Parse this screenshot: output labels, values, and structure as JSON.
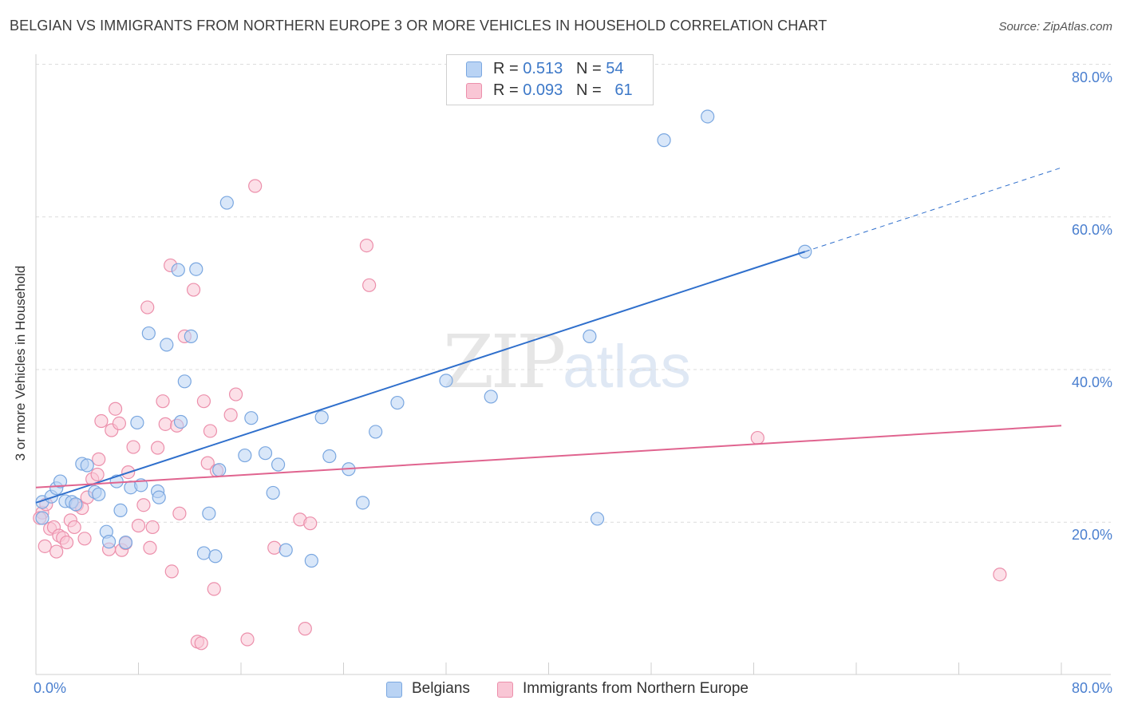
{
  "title": "BELGIAN VS IMMIGRANTS FROM NORTHERN EUROPE 3 OR MORE VEHICLES IN HOUSEHOLD CORRELATION CHART",
  "source": "Source: ZipAtlas.com",
  "watermark": {
    "zip": "ZIP",
    "atlas": "atlas"
  },
  "legend": {
    "rows": [
      {
        "r_label": "R =",
        "r_value": "0.513",
        "n_label": "N =",
        "n_value": "54",
        "color": "#a9c8f2"
      },
      {
        "r_label": "R =",
        "r_value": "0.093",
        "n_label": "N =",
        "n_value": "61",
        "color": "#f6b8cb"
      }
    ]
  },
  "bottom_legend": [
    {
      "label": "Belgians",
      "color": "#a9c8f2"
    },
    {
      "label": "Immigrants from Northern Europe",
      "color": "#f6b8cb"
    }
  ],
  "colors": {
    "blue_fill": "#b9d3f4",
    "blue_stroke": "#7aa7e0",
    "blue_line": "#2f6fcc",
    "pink_fill": "#f9c6d5",
    "pink_stroke": "#ec8fab",
    "pink_line": "#e0648f",
    "grid": "#dcdcdc",
    "tick_label": "#4a7fcf"
  },
  "chart_data": {
    "type": "scatter",
    "title": "BELGIAN VS IMMIGRANTS FROM NORTHERN EUROPE 3 OR MORE VEHICLES IN HOUSEHOLD CORRELATION CHART",
    "xlabel": "",
    "ylabel": "3 or more Vehicles in Household",
    "xlim": [
      0,
      80
    ],
    "ylim": [
      0,
      80
    ],
    "x_tick_labels": [
      "0.0%",
      "80.0%"
    ],
    "y_tick_labels": [
      "80.0%",
      "60.0%",
      "40.0%",
      "20.0%"
    ],
    "y_ticks": [
      80,
      60,
      40,
      20
    ],
    "grid": true,
    "legend_position": "top-center",
    "series": [
      {
        "name": "Belgians",
        "R": 0.513,
        "N": 54,
        "trend": {
          "x0": 0,
          "y0": 22.5,
          "x1": 60,
          "y1": 55.4,
          "dashed_to_x": 80,
          "dashed_to_y": 66.4
        },
        "points": [
          [
            0.5,
            20.5
          ],
          [
            0.5,
            22.6
          ],
          [
            1.2,
            23.3
          ],
          [
            1.6,
            24.4
          ],
          [
            1.9,
            25.3
          ],
          [
            2.3,
            22.7
          ],
          [
            2.8,
            22.6
          ],
          [
            3.1,
            22.3
          ],
          [
            3.6,
            27.6
          ],
          [
            4.0,
            27.4
          ],
          [
            4.6,
            23.9
          ],
          [
            4.9,
            23.6
          ],
          [
            5.5,
            18.7
          ],
          [
            5.7,
            17.4
          ],
          [
            6.3,
            25.3
          ],
          [
            6.6,
            21.5
          ],
          [
            7.0,
            17.3
          ],
          [
            7.4,
            24.5
          ],
          [
            7.9,
            33.0
          ],
          [
            8.2,
            24.8
          ],
          [
            8.8,
            44.7
          ],
          [
            9.5,
            24.0
          ],
          [
            9.6,
            23.2
          ],
          [
            10.2,
            43.2
          ],
          [
            11.1,
            53.0
          ],
          [
            11.3,
            33.1
          ],
          [
            11.6,
            38.4
          ],
          [
            12.1,
            44.3
          ],
          [
            12.5,
            53.1
          ],
          [
            13.1,
            15.9
          ],
          [
            13.5,
            21.1
          ],
          [
            14.0,
            15.5
          ],
          [
            14.3,
            26.8
          ],
          [
            14.9,
            61.8
          ],
          [
            16.3,
            28.7
          ],
          [
            16.8,
            33.6
          ],
          [
            17.9,
            29.0
          ],
          [
            18.5,
            23.8
          ],
          [
            18.9,
            27.5
          ],
          [
            19.5,
            16.3
          ],
          [
            21.5,
            14.9
          ],
          [
            22.3,
            33.7
          ],
          [
            22.9,
            28.6
          ],
          [
            24.4,
            26.9
          ],
          [
            25.5,
            22.5
          ],
          [
            26.5,
            31.8
          ],
          [
            28.2,
            35.6
          ],
          [
            32.0,
            38.5
          ],
          [
            35.5,
            36.4
          ],
          [
            43.2,
            44.3
          ],
          [
            43.8,
            20.4
          ],
          [
            49.0,
            70.0
          ],
          [
            52.4,
            73.1
          ],
          [
            60.0,
            55.4
          ]
        ]
      },
      {
        "name": "Immigrants from Northern Europe",
        "R": 0.093,
        "N": 61,
        "trend": {
          "x0": 0,
          "y0": 24.5,
          "x1": 80,
          "y1": 32.6
        },
        "points": [
          [
            0.5,
            21.2
          ],
          [
            0.7,
            16.8
          ],
          [
            0.8,
            22.3
          ],
          [
            1.1,
            19.1
          ],
          [
            1.4,
            19.3
          ],
          [
            1.6,
            16.1
          ],
          [
            1.8,
            18.2
          ],
          [
            2.1,
            17.9
          ],
          [
            2.4,
            17.3
          ],
          [
            2.7,
            20.2
          ],
          [
            3.0,
            19.3
          ],
          [
            3.2,
            22.2
          ],
          [
            3.6,
            21.8
          ],
          [
            3.8,
            17.8
          ],
          [
            4.0,
            23.2
          ],
          [
            4.4,
            25.6
          ],
          [
            4.8,
            26.2
          ],
          [
            4.9,
            28.2
          ],
          [
            5.1,
            33.2
          ],
          [
            5.7,
            16.4
          ],
          [
            5.9,
            32.0
          ],
          [
            6.2,
            34.8
          ],
          [
            6.5,
            32.9
          ],
          [
            6.7,
            16.3
          ],
          [
            7.0,
            17.2
          ],
          [
            7.2,
            26.5
          ],
          [
            7.6,
            29.8
          ],
          [
            8.0,
            19.5
          ],
          [
            8.4,
            22.2
          ],
          [
            8.7,
            48.1
          ],
          [
            8.9,
            16.6
          ],
          [
            9.1,
            19.3
          ],
          [
            9.5,
            29.7
          ],
          [
            9.9,
            35.8
          ],
          [
            10.1,
            32.8
          ],
          [
            10.5,
            53.6
          ],
          [
            10.6,
            13.5
          ],
          [
            11.0,
            32.6
          ],
          [
            11.2,
            21.1
          ],
          [
            11.6,
            44.3
          ],
          [
            12.3,
            50.4
          ],
          [
            12.6,
            4.3
          ],
          [
            12.9,
            4.1
          ],
          [
            13.1,
            35.8
          ],
          [
            13.4,
            27.7
          ],
          [
            13.6,
            31.9
          ],
          [
            13.9,
            11.2
          ],
          [
            14.1,
            26.7
          ],
          [
            15.2,
            34.0
          ],
          [
            15.6,
            36.7
          ],
          [
            16.5,
            4.6
          ],
          [
            17.1,
            64.0
          ],
          [
            18.6,
            16.6
          ],
          [
            20.6,
            20.3
          ],
          [
            21.0,
            6.0
          ],
          [
            21.4,
            19.8
          ],
          [
            25.8,
            56.2
          ],
          [
            26.0,
            51.0
          ],
          [
            56.3,
            31.0
          ],
          [
            75.2,
            13.1
          ],
          [
            0.3,
            20.5
          ]
        ]
      }
    ]
  }
}
